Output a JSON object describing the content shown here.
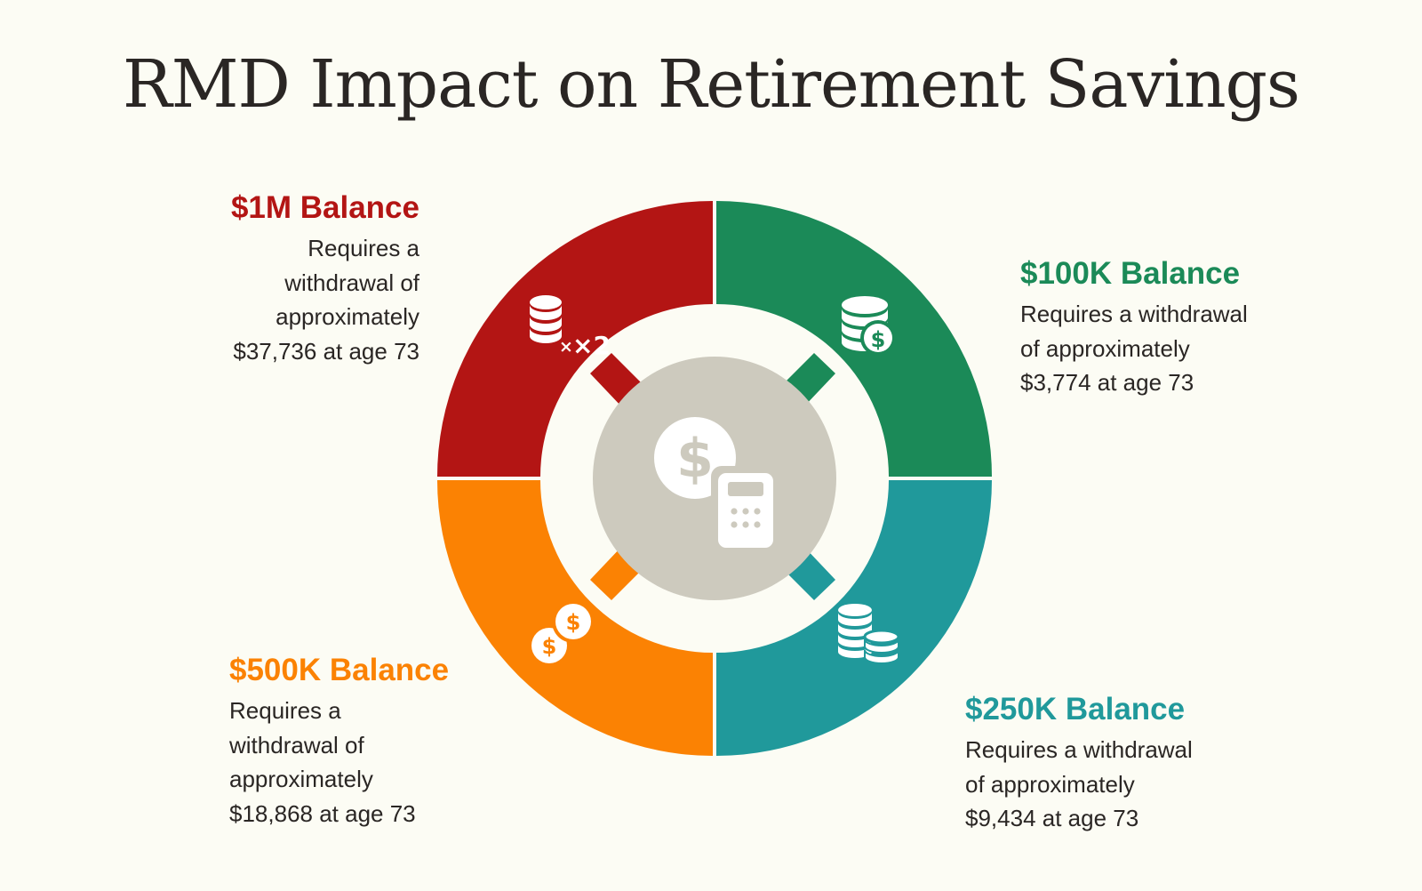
{
  "title": "RMD Impact on Retirement Savings",
  "colors": {
    "background": "#fcfcf4",
    "red": "#b31514",
    "green": "#1b8a58",
    "orange": "#fb8203",
    "teal": "#20999b",
    "hub": "#cdcabe",
    "text": "#2a2624"
  },
  "segments": [
    {
      "key": "1m",
      "heading": "$1M Balance",
      "description": "Requires a\nwithdrawal of\napproximately\n$37,736 at age 73",
      "color": "#b31514",
      "icon": "coin-stack-x2-icon",
      "icon_label": "×2"
    },
    {
      "key": "100k",
      "heading": "$100K Balance",
      "description": "Requires a  withdrawal\nof  approximately\n$3,774 at age 73",
      "color": "#1b8a58",
      "icon": "coin-stack-dollar-icon"
    },
    {
      "key": "500k",
      "heading": "$500K Balance",
      "description": "Requires a\nwithdrawal of\napproximately\n$18,868 at age 73",
      "color": "#fb8203",
      "icon": "dollar-coins-icon"
    },
    {
      "key": "250k",
      "heading": "$250K Balance",
      "description": "Requires a  withdrawal\nof  approximately\n$9,434 at age 73",
      "color": "#20999b",
      "icon": "coin-stacks-icon"
    }
  ],
  "hub": {
    "icon": "dollar-calculator-icon"
  }
}
